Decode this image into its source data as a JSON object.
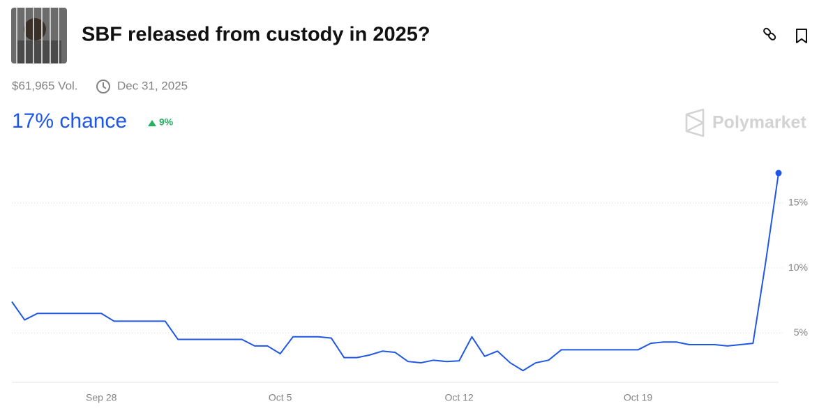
{
  "header": {
    "title": "SBF released from custody in 2025?",
    "volume": "$61,965 Vol.",
    "end_date": "Dec 31, 2025",
    "chance": "17% chance",
    "change": "9%",
    "brand": "Polymarket"
  },
  "chart_data": {
    "type": "line",
    "color": "#1e56e6",
    "categories": [
      null,
      null,
      null,
      null,
      null,
      null,
      null,
      "Sep 28",
      null,
      null,
      null,
      null,
      null,
      null,
      null,
      null,
      null,
      null,
      null,
      null,
      null,
      "Oct 5",
      null,
      null,
      null,
      null,
      null,
      null,
      null,
      null,
      null,
      null,
      null,
      null,
      null,
      "Oct 12",
      null,
      null,
      null,
      null,
      null,
      null,
      null,
      null,
      null,
      null,
      null,
      null,
      null,
      "Oct 19",
      null,
      null,
      null,
      null,
      null,
      null,
      null,
      null,
      null,
      null,
      null
    ],
    "values": [
      7.4,
      6.0,
      6.5,
      6.5,
      6.5,
      6.5,
      6.5,
      6.5,
      5.9,
      5.9,
      5.9,
      5.9,
      5.9,
      4.5,
      4.5,
      4.5,
      4.5,
      4.5,
      4.5,
      4.0,
      4.0,
      3.4,
      4.7,
      4.7,
      4.7,
      4.6,
      3.1,
      3.1,
      3.3,
      3.6,
      3.5,
      2.8,
      2.7,
      2.9,
      2.8,
      2.85,
      4.7,
      3.2,
      3.6,
      2.7,
      2.1,
      2.7,
      2.9,
      3.7,
      3.7,
      3.7,
      3.7,
      3.7,
      3.7,
      3.7,
      4.2,
      4.3,
      4.3,
      4.1,
      4.1,
      4.1,
      4.0,
      4.1,
      4.2,
      10.5,
      17.3
    ],
    "ylim": [
      1.2,
      18
    ],
    "yticks": [
      {
        "value": 5,
        "label": "5%"
      },
      {
        "value": 10,
        "label": "10%"
      },
      {
        "value": 15,
        "label": "15%"
      }
    ],
    "grid": true
  }
}
